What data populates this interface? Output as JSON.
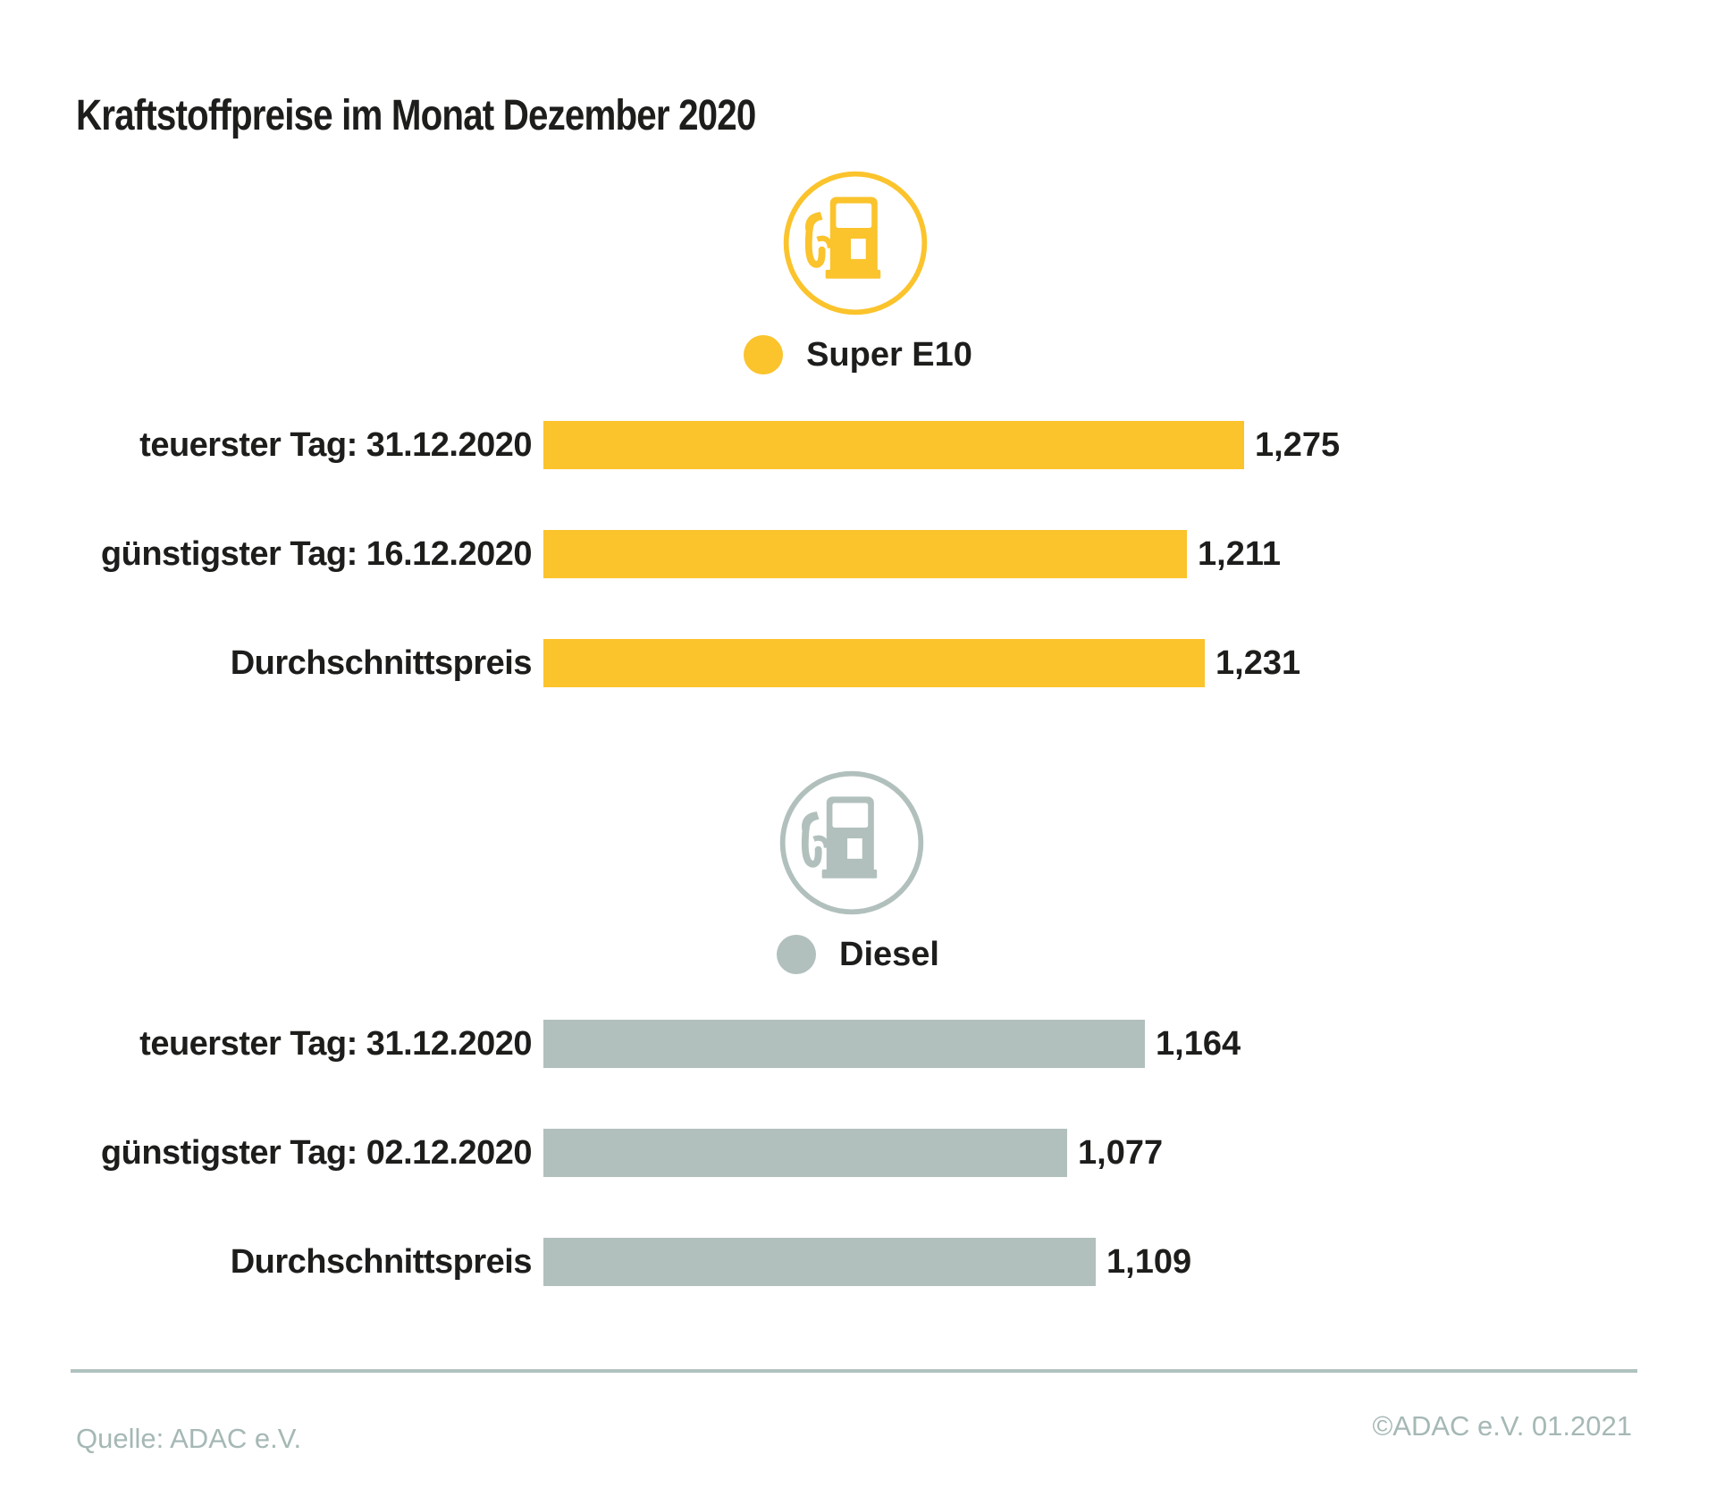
{
  "title": "Kraftstoffpreise im Monat Dezember 2020",
  "colors": {
    "super_e10": "#FBC32C",
    "diesel": "#B1C0BD",
    "text": "#1D1D1B",
    "footer_text": "#A5B8B5",
    "divider": "#AFC2BF"
  },
  "sections": [
    {
      "id": "super-e10",
      "legend_label": "Super E10",
      "color": "#FBC32C",
      "icon": "fuel-pump-icon",
      "rows": [
        {
          "label": "teuerster Tag: 31.12.2020",
          "value": 1.275,
          "value_label": "1,275"
        },
        {
          "label": "günstigster Tag: 16.12.2020",
          "value": 1.211,
          "value_label": "1,211"
        },
        {
          "label": "Durchschnittspreis",
          "value": 1.231,
          "value_label": "1,231"
        }
      ]
    },
    {
      "id": "diesel",
      "legend_label": "Diesel",
      "color": "#B1C0BD",
      "icon": "fuel-pump-icon",
      "rows": [
        {
          "label": "teuerster Tag: 31.12.2020",
          "value": 1.164,
          "value_label": "1,164"
        },
        {
          "label": "günstigster Tag: 02.12.2020",
          "value": 1.077,
          "value_label": "1,077"
        },
        {
          "label": "Durchschnittspreis",
          "value": 1.109,
          "value_label": "1,109"
        }
      ]
    }
  ],
  "footer": {
    "source": "Quelle: ADAC e.V.",
    "copyright": "©ADAC e.V. 01.2021"
  },
  "chart_data": {
    "type": "bar",
    "orientation": "horizontal",
    "title": "Kraftstoffpreise im Monat Dezember 2020",
    "legend_position": "above-each-group",
    "grid": false,
    "groups": [
      {
        "name": "Super E10",
        "color": "#FBC32C",
        "categories": [
          "teuerster Tag: 31.12.2020",
          "günstigster Tag: 16.12.2020",
          "Durchschnittspreis"
        ],
        "values": [
          1.275,
          1.211,
          1.231
        ],
        "value_labels": [
          "1,275",
          "1,211",
          "1,231"
        ]
      },
      {
        "name": "Diesel",
        "color": "#B1C0BD",
        "categories": [
          "teuerster Tag: 31.12.2020",
          "günstigster Tag: 02.12.2020",
          "Durchschnittspreis"
        ],
        "values": [
          1.164,
          1.077,
          1.109
        ],
        "value_labels": [
          "1,164",
          "1,077",
          "1,109"
        ]
      }
    ]
  }
}
